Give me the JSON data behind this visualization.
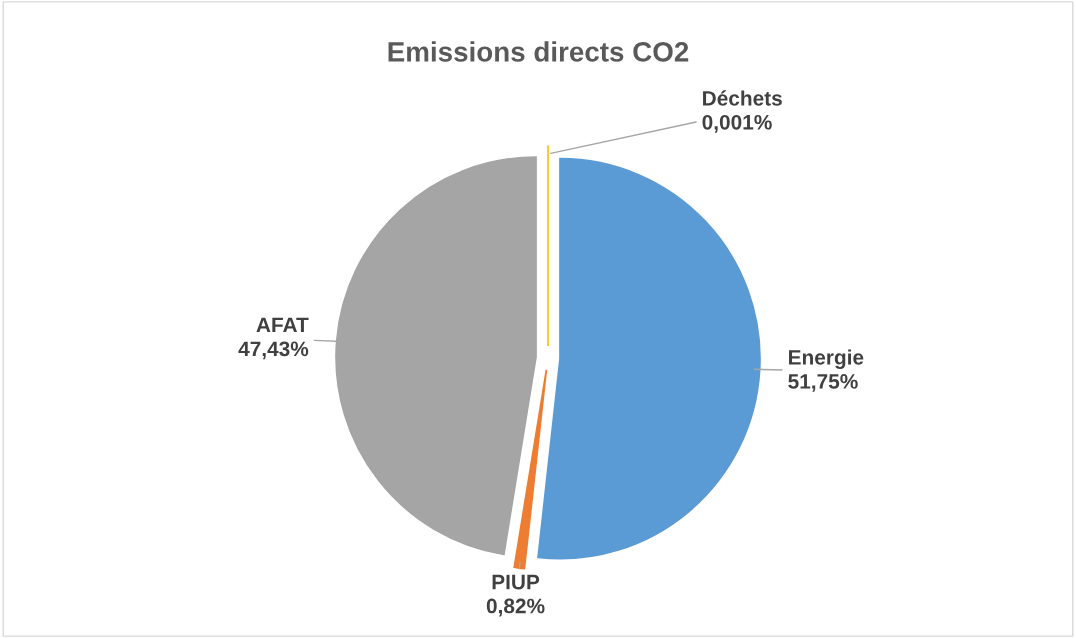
{
  "chart_data": {
    "type": "pie",
    "title": "Emissions directs CO2",
    "categories": [
      "Energie",
      "PIUP",
      "AFAT",
      "Déchets"
    ],
    "values": [
      51.75,
      0.82,
      47.43,
      0.001
    ],
    "value_labels": [
      "51,75%",
      "0,82%",
      "47,43%",
      "0,001%"
    ],
    "colors": [
      "#5b9bd5",
      "#ed7d31",
      "#a5a5a5",
      "#ffc000"
    ],
    "legend": false
  }
}
